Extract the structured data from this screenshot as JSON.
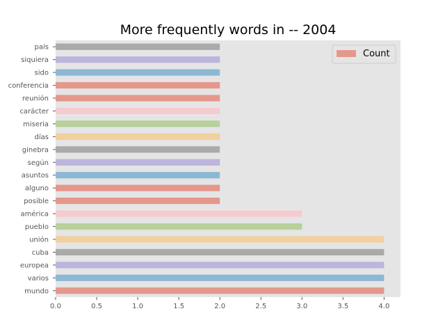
{
  "chart_data": {
    "type": "bar",
    "orientation": "horizontal",
    "title": "More frequently words in -- 2004",
    "xlabel": "",
    "ylabel": "",
    "xlim": [
      0,
      4.2
    ],
    "x_ticks": [
      "0.0",
      "0.5",
      "1.0",
      "1.5",
      "2.0",
      "2.5",
      "3.0",
      "3.5",
      "4.0"
    ],
    "grid": false,
    "legend_position": "top-right",
    "categories": [
      "país",
      "siquiera",
      "sido",
      "conferencia",
      "reunión",
      "carácter",
      "miseria",
      "días",
      "ginebra",
      "según",
      "asuntos",
      "alguno",
      "posible",
      "américa",
      "pueblo",
      "unión",
      "cuba",
      "europea",
      "varios",
      "mundo"
    ],
    "series": [
      {
        "name": "Count",
        "values": [
          2,
          2,
          2,
          2,
          2,
          2,
          2,
          2,
          2,
          2,
          2,
          2,
          2,
          3,
          3,
          4,
          4,
          4,
          4,
          4
        ]
      }
    ],
    "bar_colors": [
      "#aaaaaa",
      "#bcb5dc",
      "#8db8d5",
      "#e4988c",
      "#e4988c",
      "#f5cbd0",
      "#b8d09a",
      "#f1d09f",
      "#aaaaaa",
      "#bcb5dc",
      "#8db8d5",
      "#e4988c",
      "#e4988c",
      "#f5cbd0",
      "#b8d09a",
      "#f1d09f",
      "#aaaaaa",
      "#bcb5dc",
      "#8db8d5",
      "#e4988c"
    ],
    "legend_color": "#e4988c",
    "background_color": "#e5e5e5"
  }
}
